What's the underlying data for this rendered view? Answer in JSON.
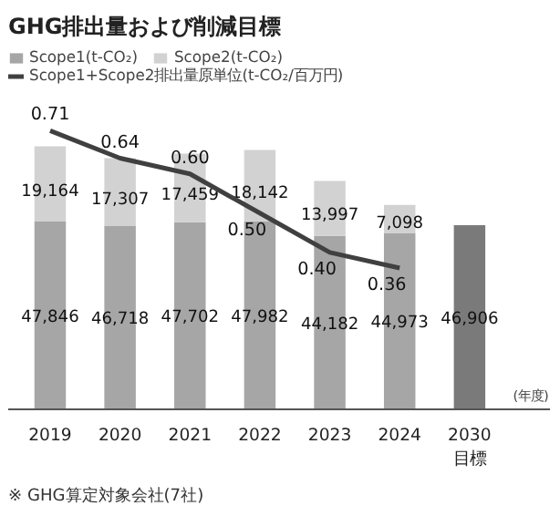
{
  "chart_data": {
    "type": "bar",
    "stacked": true,
    "title": "GHG排出量および削減目標",
    "categories": [
      "2019",
      "2020",
      "2021",
      "2022",
      "2023",
      "2024",
      "2030\n目標"
    ],
    "xlabel": "(年度)",
    "series": [
      {
        "name": "Scope1(t-CO₂)",
        "color": "#a6a6a6",
        "colors": [
          "#a6a6a6",
          "#a6a6a6",
          "#a6a6a6",
          "#a6a6a6",
          "#a6a6a6",
          "#a6a6a6",
          "#7a7a7a"
        ],
        "values": [
          47846,
          46718,
          47702,
          47982,
          44182,
          44973,
          46906
        ],
        "value_labels": [
          "47,846",
          "46,718",
          "47,702",
          "47,982",
          "44,182",
          "44,973",
          "46,906"
        ]
      },
      {
        "name": "Scope2(t-CO₂)",
        "color": "#d2d2d2",
        "values": [
          19164,
          17307,
          17459,
          18142,
          13997,
          7098,
          null
        ],
        "value_labels": [
          "19,164",
          "17,307",
          "17,459",
          "18,142",
          "13,997",
          "7,098",
          null
        ]
      },
      {
        "name": "Scope1+Scope2排出量原単位(t-CO₂/百万円)",
        "type": "line",
        "axis": "y2",
        "color": "#404040",
        "values": [
          0.71,
          0.64,
          0.6,
          0.5,
          0.4,
          0.36,
          null
        ],
        "value_labels": [
          "0.71",
          "0.64",
          "0.60",
          "0.50",
          "0.40",
          "0.36",
          null
        ]
      }
    ],
    "ylim": [
      0,
      92000
    ],
    "y2lim": [
      0,
      0.92
    ],
    "grid": false,
    "legend": "top",
    "tick_labels": "x",
    "annotations": [
      "※ GHG算定対象会社(7社)"
    ]
  }
}
